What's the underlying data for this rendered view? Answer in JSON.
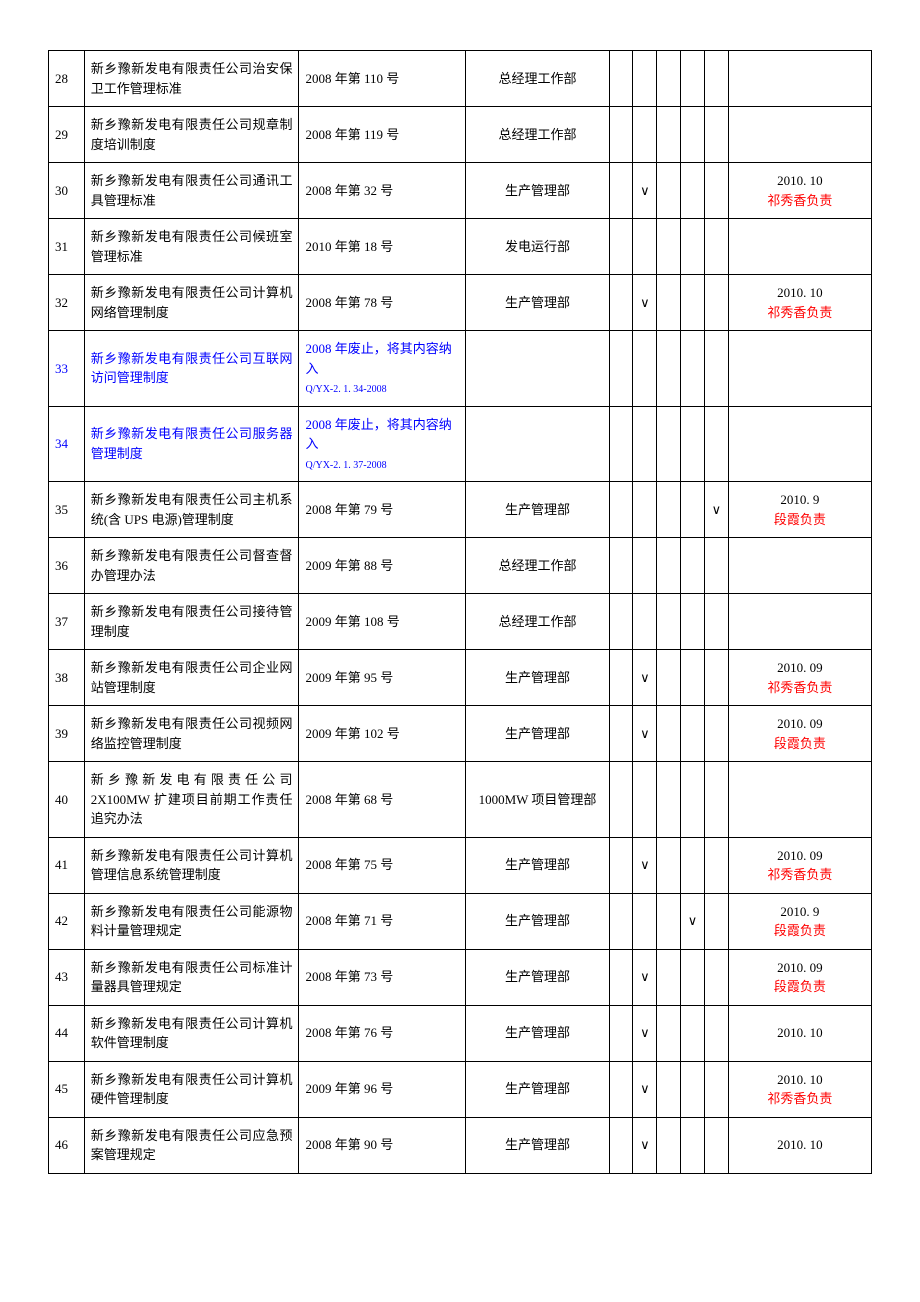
{
  "rows": [
    {
      "num": "28",
      "name": "新乡豫新发电有限责任公司治安保卫工作管理标准",
      "doc": "2008 年第 110 号",
      "dept": "总经理工作部",
      "checks": [
        "",
        "",
        "",
        "",
        ""
      ],
      "note": ""
    },
    {
      "num": "29",
      "name": "新乡豫新发电有限责任公司规章制度培训制度",
      "doc": "2008 年第 119 号",
      "dept": "总经理工作部",
      "checks": [
        "",
        "",
        "",
        "",
        ""
      ],
      "note": ""
    },
    {
      "num": "30",
      "name": "新乡豫新发电有限责任公司通讯工具管理标准",
      "doc": "2008 年第 32 号",
      "dept": "生产管理部",
      "checks": [
        "",
        "∨",
        "",
        "",
        ""
      ],
      "note": {
        "date": "2010. 10",
        "person": "祁秀香负责"
      }
    },
    {
      "num": "31",
      "name": "新乡豫新发电有限责任公司候班室管理标准",
      "doc": "2010 年第 18 号",
      "dept": "发电运行部",
      "checks": [
        "",
        "",
        "",
        "",
        ""
      ],
      "note": ""
    },
    {
      "num": "32",
      "name": "新乡豫新发电有限责任公司计算机网络管理制度",
      "doc": "2008 年第 78 号",
      "dept": "生产管理部",
      "checks": [
        "",
        "∨",
        "",
        "",
        ""
      ],
      "note": {
        "date": "2010. 10",
        "person": "祁秀香负责"
      }
    },
    {
      "num": "33",
      "name": "新乡豫新发电有限责任公司互联网访问管理制度",
      "nameBlue": true,
      "doc": "2008 年废止，将其内容纳入",
      "docCode": "Q/YX-2. 1. 34-2008",
      "docBlue": true,
      "dept": "",
      "checks": [
        "",
        "",
        "",
        "",
        ""
      ],
      "note": ""
    },
    {
      "num": "34",
      "name": "新乡豫新发电有限责任公司服务器管理制度",
      "nameBlue": true,
      "doc": "2008 年废止，将其内容纳入",
      "docCode": "Q/YX-2. 1. 37-2008",
      "docBlue": true,
      "dept": "",
      "checks": [
        "",
        "",
        "",
        "",
        ""
      ],
      "note": ""
    },
    {
      "num": "35",
      "name": "新乡豫新发电有限责任公司主机系统(含 UPS 电源)管理制度",
      "doc": "2008 年第 79 号",
      "dept": "生产管理部",
      "checks": [
        "",
        "",
        "",
        "",
        "∨"
      ],
      "note": {
        "date": "2010. 9",
        "person": "段霞负责"
      }
    },
    {
      "num": "36",
      "name": "新乡豫新发电有限责任公司督查督办管理办法",
      "doc": "2009 年第 88 号",
      "dept": "总经理工作部",
      "checks": [
        "",
        "",
        "",
        "",
        ""
      ],
      "note": ""
    },
    {
      "num": "37",
      "name": "新乡豫新发电有限责任公司接待管理制度",
      "doc": "2009 年第 108 号",
      "dept": "总经理工作部",
      "checks": [
        "",
        "",
        "",
        "",
        ""
      ],
      "note": ""
    },
    {
      "num": "38",
      "name": "新乡豫新发电有限责任公司企业网站管理制度",
      "doc": "2009 年第 95 号",
      "dept": "生产管理部",
      "checks": [
        "",
        "∨",
        "",
        "",
        ""
      ],
      "note": {
        "date": "2010. 09",
        "person": "祁秀香负责"
      }
    },
    {
      "num": "39",
      "name": "新乡豫新发电有限责任公司视频网络监控管理制度",
      "doc": "2009 年第 102 号",
      "dept": "生产管理部",
      "checks": [
        "",
        "∨",
        "",
        "",
        ""
      ],
      "note": {
        "date": "2010. 09",
        "person": "段霞负责"
      }
    },
    {
      "num": "40",
      "name": "新乡豫新发电有限责任公司 2X100MW 扩建项目前期工作责任追究办法",
      "doc": "2008 年第 68 号",
      "dept": "1000MW 项目管理部",
      "checks": [
        "",
        "",
        "",
        "",
        ""
      ],
      "note": ""
    },
    {
      "num": "41",
      "name": "新乡豫新发电有限责任公司计算机管理信息系统管理制度",
      "doc": "2008 年第 75 号",
      "dept": "生产管理部",
      "checks": [
        "",
        "∨",
        "",
        "",
        ""
      ],
      "note": {
        "date": "2010. 09",
        "person": "祁秀香负责"
      }
    },
    {
      "num": "42",
      "name": "新乡豫新发电有限责任公司能源物料计量管理规定",
      "doc": "2008 年第 71 号",
      "dept": "生产管理部",
      "checks": [
        "",
        "",
        "",
        "∨",
        ""
      ],
      "note": {
        "date": "2010. 9",
        "person": "段霞负责"
      }
    },
    {
      "num": "43",
      "name": "新乡豫新发电有限责任公司标准计量器具管理规定",
      "doc": "2008 年第 73 号",
      "dept": "生产管理部",
      "checks": [
        "",
        "∨",
        "",
        "",
        ""
      ],
      "note": {
        "date": "2010. 09",
        "person": "段霞负责"
      }
    },
    {
      "num": "44",
      "name": "新乡豫新发电有限责任公司计算机软件管理制度",
      "doc": "2008 年第 76 号",
      "dept": "生产管理部",
      "checks": [
        "",
        "∨",
        "",
        "",
        ""
      ],
      "note": {
        "date": "2010. 10",
        "person": ""
      }
    },
    {
      "num": "45",
      "name": "新乡豫新发电有限责任公司计算机硬件管理制度",
      "doc": "2009 年第 96 号",
      "dept": "生产管理部",
      "checks": [
        "",
        "∨",
        "",
        "",
        ""
      ],
      "note": {
        "date": "2010. 10",
        "person": "祁秀香负责"
      }
    },
    {
      "num": "46",
      "name": "新乡豫新发电有限责任公司应急预案管理规定",
      "doc": "2008 年第 90 号",
      "dept": "生产管理部",
      "checks": [
        "",
        "∨",
        "",
        "",
        ""
      ],
      "note": {
        "date": "2010. 10",
        "person": ""
      }
    }
  ],
  "colors": {
    "text": "#000000",
    "blue": "#0000ff",
    "red": "#ff0000",
    "border": "#000000",
    "background": "#ffffff"
  }
}
